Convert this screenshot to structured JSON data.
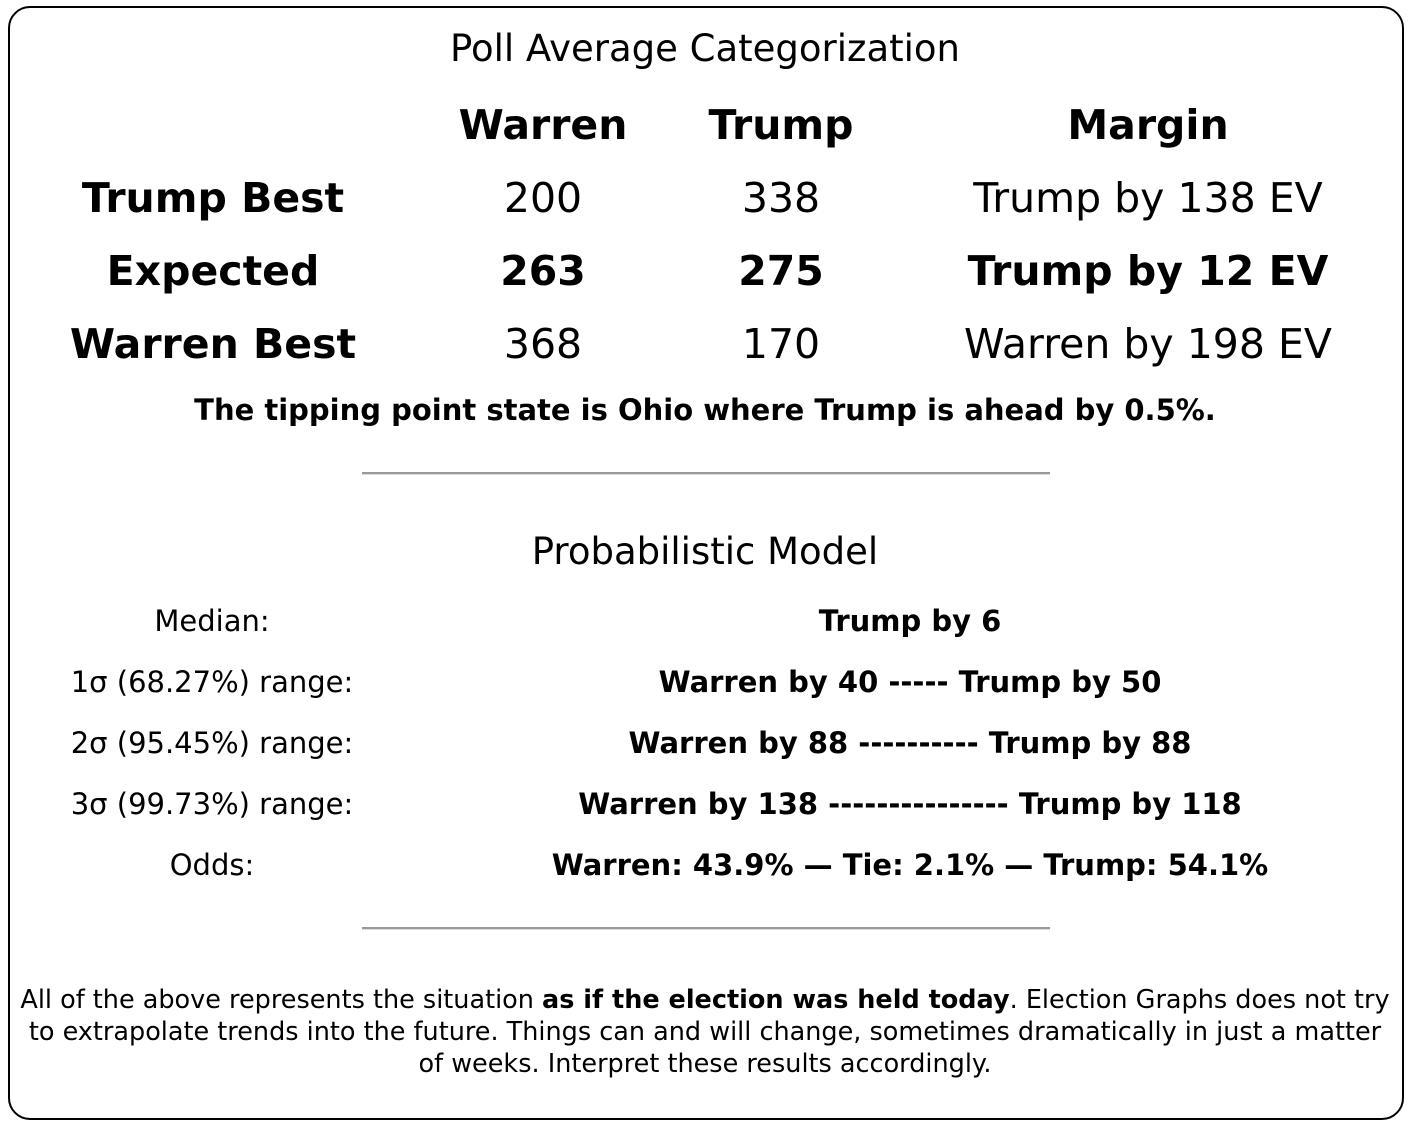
{
  "poll_section": {
    "title": "Poll Average Categorization",
    "columns": {
      "warren": "Warren",
      "trump": "Trump",
      "margin": "Margin"
    },
    "rows": [
      {
        "label": "Trump Best",
        "warren": "200",
        "trump": "338",
        "margin": "Trump by 138 EV",
        "emphasis": false
      },
      {
        "label": "Expected",
        "warren": "263",
        "trump": "275",
        "margin": "Trump by 12 EV",
        "emphasis": true
      },
      {
        "label": "Warren Best",
        "warren": "368",
        "trump": "170",
        "margin": "Warren by 198 EV",
        "emphasis": false
      }
    ],
    "tipping_point": "The tipping point state is Ohio where Trump is ahead by 0.5%."
  },
  "model_section": {
    "title": "Probabilistic Model",
    "rows": [
      {
        "label": "Median:",
        "value": "Trump by 6"
      },
      {
        "label": "1σ (68.27%) range:",
        "value": "Warren by 40 ----- Trump by 50"
      },
      {
        "label": "2σ (95.45%) range:",
        "value": "Warren by 88 ---------- Trump by 88"
      },
      {
        "label": "3σ (99.73%) range:",
        "value": "Warren by 138 --------------- Trump by 118"
      },
      {
        "label": "Odds:",
        "value": "Warren: 43.9% — Tie: 2.1% — Trump: 54.1%"
      }
    ]
  },
  "footer": {
    "text_before": "All of the above represents the situation ",
    "text_bold": "as if the election was held today",
    "text_after": ". Election Graphs does not try to extrapolate trends into the future. Things can and will change, sometimes dramatically in just a matter of weeks. Interpret these results accordingly."
  }
}
